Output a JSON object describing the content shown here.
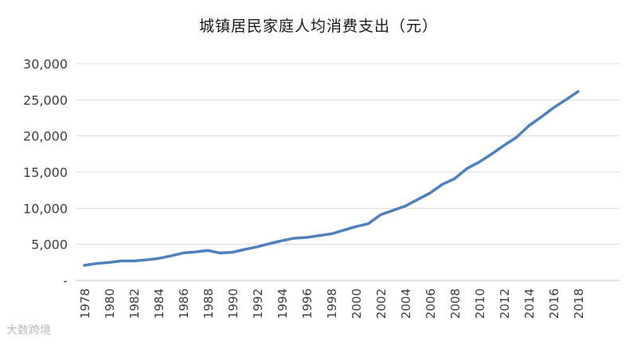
{
  "chart_data": {
    "type": "line",
    "title": "城镇居民家庭人均消费支出（元）",
    "xlabel": "",
    "ylabel": "",
    "ylim": [
      0,
      30000
    ],
    "grid": true,
    "legend": "none",
    "y_ticks": [
      "-",
      "5,000",
      "10,000",
      "15,000",
      "20,000",
      "25,000",
      "30,000"
    ],
    "x_tick_labels": [
      "1978",
      "1980",
      "1982",
      "1984",
      "1986",
      "1988",
      "1990",
      "1992",
      "1994",
      "1996",
      "1998",
      "2000",
      "2002",
      "2004",
      "2006",
      "2008",
      "2010",
      "2012",
      "2014",
      "2016",
      "2018"
    ],
    "x": [
      1978,
      1979,
      1980,
      1981,
      1982,
      1983,
      1984,
      1985,
      1986,
      1987,
      1988,
      1989,
      1990,
      1991,
      1992,
      1993,
      1994,
      1995,
      1996,
      1997,
      1998,
      1999,
      2000,
      2001,
      2002,
      2003,
      2004,
      2005,
      2006,
      2007,
      2008,
      2009,
      2010,
      2011,
      2012,
      2013,
      2014,
      2015,
      2016,
      2017,
      2018
    ],
    "series": [
      {
        "color": "#4f81bd",
        "values": [
          2100,
          2350,
          2500,
          2700,
          2700,
          2850,
          3050,
          3400,
          3800,
          3950,
          4150,
          3800,
          3900,
          4300,
          4650,
          5100,
          5500,
          5850,
          5950,
          6200,
          6450,
          6950,
          7450,
          7850,
          9100,
          9700,
          10300,
          11200,
          12100,
          13300,
          14100,
          15500,
          16400,
          17500,
          18700,
          19800,
          21400,
          22600,
          23900,
          25000,
          26150
        ]
      }
    ]
  },
  "watermark": "大数跨境"
}
